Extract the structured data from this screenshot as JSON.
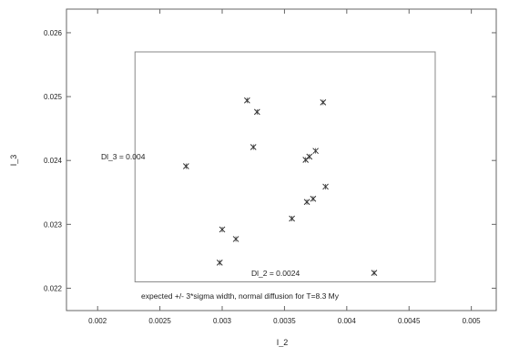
{
  "chart_data": {
    "type": "scatter",
    "title": "",
    "xlabel": "I_2",
    "ylabel": "I_3",
    "xlim": [
      0.00175,
      0.0052
    ],
    "ylim": [
      0.02165,
      0.02637
    ],
    "xticks": [
      0.002,
      0.0025,
      0.003,
      0.0035,
      0.004,
      0.0045,
      0.005
    ],
    "xtick_labels": [
      "0.002",
      "0.0025",
      "0.003",
      "0.0035",
      "0.004",
      "0.0045",
      "0.005"
    ],
    "yticks": [
      0.022,
      0.023,
      0.024,
      0.025,
      0.026
    ],
    "ytick_labels": [
      "0.022",
      "0.023",
      "0.024",
      "0.025",
      "0.026"
    ],
    "marker": "x",
    "points": [
      {
        "x": 0.00271,
        "y": 0.02391
      },
      {
        "x": 0.00298,
        "y": 0.0224
      },
      {
        "x": 0.003,
        "y": 0.02292
      },
      {
        "x": 0.00311,
        "y": 0.02277
      },
      {
        "x": 0.0032,
        "y": 0.02494
      },
      {
        "x": 0.00325,
        "y": 0.02421
      },
      {
        "x": 0.00328,
        "y": 0.02476
      },
      {
        "x": 0.00356,
        "y": 0.02309
      },
      {
        "x": 0.00367,
        "y": 0.02401
      },
      {
        "x": 0.00368,
        "y": 0.02335
      },
      {
        "x": 0.0037,
        "y": 0.02406
      },
      {
        "x": 0.00373,
        "y": 0.0234
      },
      {
        "x": 0.00375,
        "y": 0.02415
      },
      {
        "x": 0.00381,
        "y": 0.02491
      },
      {
        "x": 0.00383,
        "y": 0.02359
      },
      {
        "x": 0.00422,
        "y": 0.02224
      }
    ],
    "box": {
      "x": [
        0.0023,
        0.00471
      ],
      "y": [
        0.0221,
        0.0257
      ]
    },
    "annotations": {
      "dl3": "Dl_3 = 0.004",
      "dl2": "Dl_2 = 0.0024",
      "caption": "expected +/- 3*sigma width, normal diffusion for T=8.3 My"
    },
    "grid": false
  }
}
